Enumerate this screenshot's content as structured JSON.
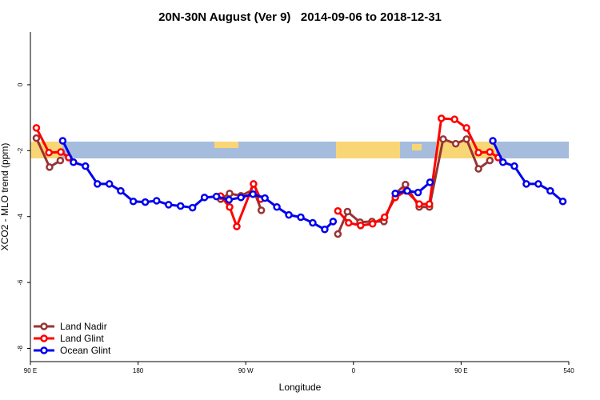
{
  "chart_data": {
    "type": "line",
    "title": "20N-30N August (Ver 9)   2014-09-06 to 2018-12-31",
    "x_label": "Longitude",
    "y_label": "XCO2 - MLO trend (ppm)",
    "xlim": [
      90,
      540
    ],
    "xticks": [
      {
        "value": 90,
        "label": "90 E"
      },
      180,
      {
        "value": 270,
        "label": "90 W"
      },
      {
        "value": 360,
        "label": "0"
      },
      {
        "value": 450,
        "label": "90 E"
      },
      540
    ],
    "ylim": [
      -8.4,
      1.6
    ],
    "yticks": [
      0,
      -2,
      -4,
      -6,
      -8
    ],
    "legend": "bottom-left",
    "series": [
      {
        "name": "Land Nadir",
        "color": "#993333",
        "x": [
          95,
          106,
          115,
          null,
          249,
          256.5,
          266,
          276.5,
          283,
          null,
          347,
          355,
          365.5,
          375.5,
          385.5,
          395,
          403.5,
          415,
          423.5,
          435,
          445.5,
          454.5,
          464.5,
          474
        ],
        "values": [
          -1.62,
          -2.5,
          -2.3,
          null,
          -3.47,
          -3.3,
          -3.37,
          -3.18,
          -3.81,
          null,
          -4.53,
          -3.85,
          -4.17,
          -4.15,
          -4.15,
          -3.3,
          -3.03,
          -3.71,
          -3.71,
          -1.65,
          -1.79,
          -1.65,
          -2.55,
          -2.3
        ]
      },
      {
        "name": "Land Glint",
        "color": "#ff0000",
        "x": [
          95,
          105.5,
          115.5,
          122,
          null,
          249,
          256.5,
          262.5,
          276.5,
          282.5,
          null,
          347,
          356,
          366,
          376,
          386,
          395,
          404,
          415,
          423.5,
          433.5,
          444.5,
          454.5,
          464.5,
          474,
          481
        ],
        "values": [
          -1.31,
          -2.06,
          -2.04,
          -2.21,
          null,
          -3.38,
          -3.71,
          -4.3,
          -3.01,
          -3.47,
          null,
          -3.83,
          -4.19,
          -4.27,
          -4.22,
          -4.02,
          -3.42,
          -3.22,
          -3.62,
          -3.62,
          -1.02,
          -1.05,
          -1.31,
          -2.06,
          -2.04,
          -2.21
        ]
      },
      {
        "name": "Ocean Glint",
        "color": "#0000ee",
        "x": [
          117,
          126,
          136,
          146,
          156,
          165.5,
          176,
          186,
          195.5,
          205.5,
          215.5,
          225.5,
          235.5,
          245.5,
          256,
          266,
          276,
          286,
          296,
          306,
          316,
          326,
          336,
          343,
          null,
          395,
          405,
          414,
          424,
          null,
          476.5,
          485,
          494.5,
          504.5,
          514.5,
          524.5,
          535
        ],
        "values": [
          -1.7,
          -2.35,
          -2.47,
          -3.01,
          -3.01,
          -3.22,
          -3.54,
          -3.56,
          -3.52,
          -3.64,
          -3.68,
          -3.73,
          -3.42,
          -3.39,
          -3.49,
          -3.42,
          -3.32,
          -3.44,
          -3.71,
          -3.95,
          -4.02,
          -4.19,
          -4.39,
          -4.15,
          null,
          -3.3,
          -3.22,
          -3.27,
          -2.96,
          null,
          -1.7,
          -2.35,
          -2.47,
          -3.01,
          -3.01,
          -3.22,
          -3.54
        ]
      }
    ]
  }
}
